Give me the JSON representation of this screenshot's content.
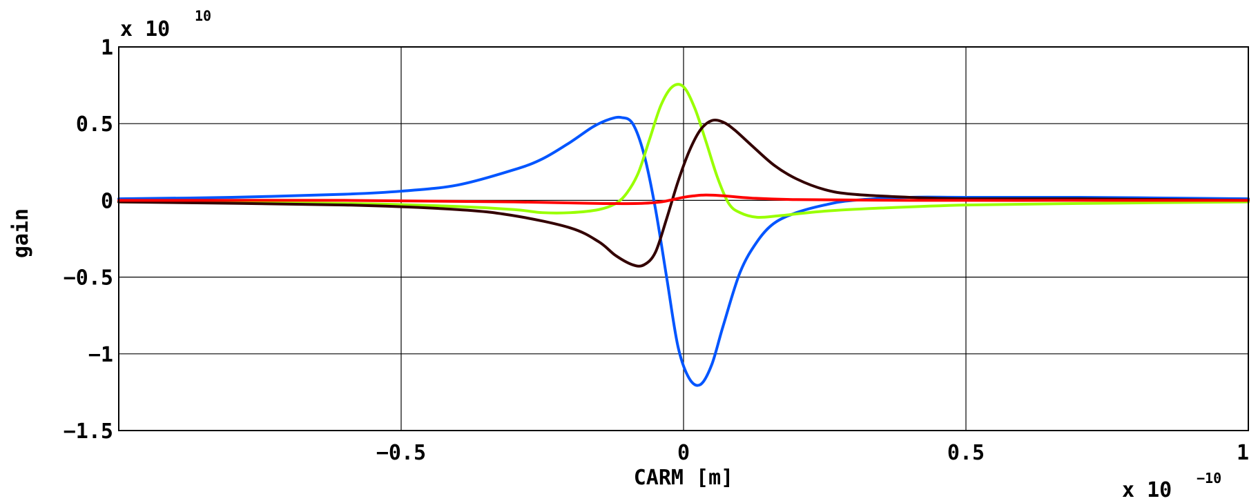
{
  "chart_data": {
    "type": "line",
    "title": "",
    "xlabel": "CARM [m]",
    "ylabel": "gain",
    "x_multiplier": {
      "base": "x 10",
      "exponent": "−10"
    },
    "y_multiplier": {
      "base": "x 10",
      "exponent": "10"
    },
    "xlim": [
      -1,
      1
    ],
    "ylim": [
      -1.5,
      1
    ],
    "x_ticks": [
      -0.5,
      0,
      0.5,
      1
    ],
    "x_tick_labels": [
      "−0.5",
      "0",
      "0.5",
      "1"
    ],
    "y_ticks": [
      1,
      0.5,
      0,
      -0.5,
      -1,
      -1.5
    ],
    "y_tick_labels": [
      "1",
      "0.5",
      "0",
      "−0.5",
      "−1",
      "−1.5"
    ],
    "grid": true,
    "series": [
      {
        "color": "#0055ff",
        "x": [
          -1.0,
          -0.8,
          -0.6,
          -0.5,
          -0.4,
          -0.3,
          -0.25,
          -0.2,
          -0.16,
          -0.13,
          -0.11,
          -0.09,
          -0.07,
          -0.05,
          -0.03,
          -0.01,
          0.01,
          0.03,
          0.05,
          0.07,
          0.1,
          0.13,
          0.16,
          0.2,
          0.25,
          0.3,
          0.4,
          0.5,
          0.7,
          1.0
        ],
        "values": [
          0.01,
          0.02,
          0.04,
          0.06,
          0.1,
          0.2,
          0.27,
          0.38,
          0.48,
          0.53,
          0.54,
          0.5,
          0.3,
          -0.05,
          -0.5,
          -0.95,
          -1.16,
          -1.2,
          -1.07,
          -0.82,
          -0.47,
          -0.27,
          -0.15,
          -0.08,
          -0.03,
          0.0,
          0.02,
          0.02,
          0.02,
          0.01
        ]
      },
      {
        "color": "#99ff00",
        "x": [
          -1.0,
          -0.6,
          -0.4,
          -0.3,
          -0.25,
          -0.2,
          -0.15,
          -0.12,
          -0.1,
          -0.08,
          -0.06,
          -0.04,
          -0.02,
          0.0,
          0.02,
          0.04,
          0.06,
          0.08,
          0.1,
          0.13,
          0.17,
          0.25,
          0.35,
          0.5,
          0.7,
          1.0
        ],
        "values": [
          -0.01,
          -0.02,
          -0.04,
          -0.06,
          -0.08,
          -0.08,
          -0.06,
          -0.02,
          0.05,
          0.18,
          0.4,
          0.62,
          0.74,
          0.74,
          0.6,
          0.38,
          0.15,
          -0.02,
          -0.08,
          -0.11,
          -0.1,
          -0.07,
          -0.05,
          -0.03,
          -0.02,
          -0.01
        ]
      },
      {
        "color": "#330000",
        "x": [
          -1.0,
          -0.6,
          -0.4,
          -0.3,
          -0.2,
          -0.15,
          -0.12,
          -0.09,
          -0.07,
          -0.05,
          -0.03,
          -0.01,
          0.01,
          0.03,
          0.05,
          0.07,
          0.09,
          0.12,
          0.16,
          0.2,
          0.25,
          0.3,
          0.4,
          0.5,
          0.7,
          1.0
        ],
        "values": [
          -0.01,
          -0.03,
          -0.06,
          -0.1,
          -0.18,
          -0.27,
          -0.36,
          -0.42,
          -0.42,
          -0.34,
          -0.12,
          0.12,
          0.32,
          0.46,
          0.52,
          0.51,
          0.46,
          0.36,
          0.23,
          0.14,
          0.07,
          0.04,
          0.02,
          0.01,
          0.01,
          0.0
        ]
      },
      {
        "color": "#ff0000",
        "x": [
          -1.0,
          -0.6,
          -0.3,
          -0.15,
          -0.08,
          -0.04,
          0.0,
          0.02,
          0.04,
          0.07,
          0.12,
          0.2,
          0.4,
          0.7,
          1.0
        ],
        "values": [
          0.0,
          0.0,
          -0.01,
          -0.02,
          -0.02,
          -0.01,
          0.02,
          0.03,
          0.035,
          0.03,
          0.015,
          0.005,
          0.0,
          0.0,
          0.0
        ]
      }
    ]
  }
}
